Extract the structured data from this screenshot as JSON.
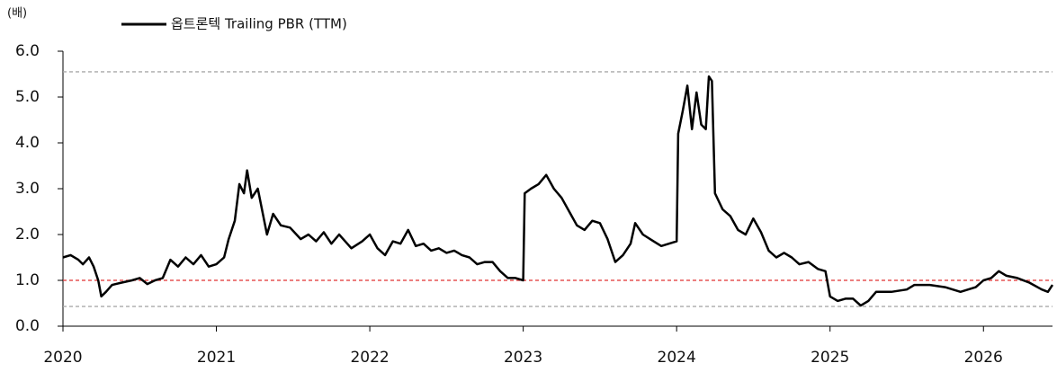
{
  "chart_data": {
    "type": "line",
    "y_axis_label": "(배)",
    "x": [
      2020.0,
      2020.05,
      2020.1,
      2020.13,
      2020.17,
      2020.2,
      2020.23,
      2020.25,
      2020.28,
      2020.32,
      2020.38,
      2020.45,
      2020.5,
      2020.55,
      2020.6,
      2020.65,
      2020.7,
      2020.75,
      2020.8,
      2020.85,
      2020.9,
      2020.95,
      2021.0,
      2021.05,
      2021.08,
      2021.12,
      2021.15,
      2021.18,
      2021.2,
      2021.23,
      2021.27,
      2021.3,
      2021.33,
      2021.37,
      2021.42,
      2021.48,
      2021.55,
      2021.6,
      2021.65,
      2021.7,
      2021.75,
      2021.8,
      2021.88,
      2021.95,
      2022.0,
      2022.05,
      2022.1,
      2022.15,
      2022.2,
      2022.25,
      2022.3,
      2022.35,
      2022.4,
      2022.45,
      2022.5,
      2022.55,
      2022.6,
      2022.65,
      2022.7,
      2022.75,
      2022.8,
      2022.85,
      2022.9,
      2022.95,
      2023.0,
      2023.01,
      2023.05,
      2023.1,
      2023.15,
      2023.2,
      2023.25,
      2023.3,
      2023.35,
      2023.4,
      2023.45,
      2023.5,
      2023.55,
      2023.6,
      2023.65,
      2023.7,
      2023.73,
      2023.78,
      2023.85,
      2023.9,
      2023.95,
      2024.0,
      2024.01,
      2024.04,
      2024.07,
      2024.1,
      2024.13,
      2024.16,
      2024.19,
      2024.21,
      2024.23,
      2024.25,
      2024.3,
      2024.35,
      2024.4,
      2024.45,
      2024.5,
      2024.55,
      2024.6,
      2024.65,
      2024.7,
      2024.75,
      2024.8,
      2024.86,
      2024.92,
      2024.97,
      2025.0,
      2025.05,
      2025.1,
      2025.15,
      2025.2,
      2025.25,
      2025.3,
      2025.4,
      2025.5,
      2025.55,
      2025.65,
      2025.75,
      2025.85,
      2025.95,
      2026.0,
      2026.05,
      2026.1,
      2026.15,
      2026.22,
      2026.3,
      2026.38,
      2026.42,
      2026.45
    ],
    "series": [
      {
        "name": "옵트론텍 Trailing PBR (TTM)",
        "color": "#000000",
        "values": [
          1.5,
          1.55,
          1.45,
          1.35,
          1.5,
          1.3,
          1.0,
          0.65,
          0.75,
          0.9,
          0.95,
          1.0,
          1.05,
          0.92,
          1.0,
          1.05,
          1.45,
          1.3,
          1.5,
          1.35,
          1.55,
          1.3,
          1.35,
          1.5,
          1.9,
          2.3,
          3.1,
          2.9,
          3.4,
          2.8,
          3.0,
          2.5,
          2.0,
          2.45,
          2.2,
          2.15,
          1.9,
          2.0,
          1.85,
          2.05,
          1.8,
          2.0,
          1.7,
          1.85,
          2.0,
          1.7,
          1.55,
          1.85,
          1.8,
          2.1,
          1.75,
          1.8,
          1.65,
          1.7,
          1.6,
          1.65,
          1.55,
          1.5,
          1.35,
          1.4,
          1.4,
          1.2,
          1.05,
          1.05,
          1.0,
          2.9,
          3.0,
          3.1,
          3.3,
          3.0,
          2.8,
          2.5,
          2.2,
          2.1,
          2.3,
          2.25,
          1.9,
          1.4,
          1.55,
          1.8,
          2.25,
          2.0,
          1.85,
          1.75,
          1.8,
          1.85,
          4.2,
          4.7,
          5.25,
          4.3,
          5.1,
          4.4,
          4.3,
          5.45,
          5.35,
          2.9,
          2.55,
          2.4,
          2.1,
          2.0,
          2.35,
          2.05,
          1.65,
          1.5,
          1.6,
          1.5,
          1.35,
          1.4,
          1.25,
          1.2,
          0.65,
          0.55,
          0.6,
          0.6,
          0.45,
          0.55,
          0.75,
          0.75,
          0.8,
          0.9,
          0.9,
          0.85,
          0.75,
          0.85,
          1.0,
          1.05,
          1.2,
          1.1,
          1.05,
          0.95,
          0.8,
          0.75,
          0.9
        ]
      }
    ],
    "reference_lines": [
      {
        "value": 5.55,
        "color": "#aaaaaa"
      },
      {
        "value": 1.0,
        "color": "#e03030"
      },
      {
        "value": 0.43,
        "color": "#aaaaaa"
      }
    ],
    "xlim": [
      2020,
      2026.45
    ],
    "xticks": [
      2020,
      2021,
      2022,
      2023,
      2024,
      2025,
      2026
    ],
    "ylim": [
      0,
      6
    ],
    "yticks": [
      {
        "value": 0,
        "label": "0.0"
      },
      {
        "value": 1,
        "label": "1.0"
      },
      {
        "value": 2,
        "label": "2.0"
      },
      {
        "value": 3,
        "label": "3.0"
      },
      {
        "value": 4,
        "label": "4.0"
      },
      {
        "value": 5,
        "label": "5.0"
      },
      {
        "value": 6,
        "label": "6.0"
      }
    ]
  }
}
